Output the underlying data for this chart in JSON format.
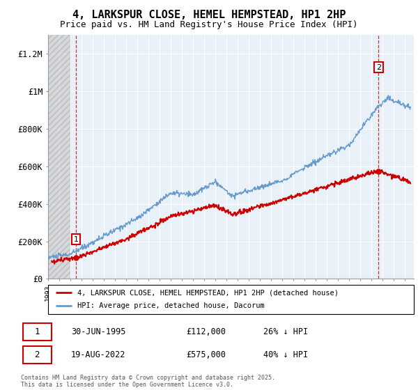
{
  "title": "4, LARKSPUR CLOSE, HEMEL HEMPSTEAD, HP1 2HP",
  "subtitle": "Price paid vs. HM Land Registry's House Price Index (HPI)",
  "ylim": [
    0,
    1300000
  ],
  "yticks": [
    0,
    200000,
    400000,
    600000,
    800000,
    1000000,
    1200000
  ],
  "ytick_labels": [
    "£0",
    "£200K",
    "£400K",
    "£600K",
    "£800K",
    "£1M",
    "£1.2M"
  ],
  "hpi_color": "#6699cc",
  "price_color": "#cc0000",
  "dashed_color": "#cc0000",
  "legend_price_label": "4, LARKSPUR CLOSE, HEMEL HEMPSTEAD, HP1 2HP (detached house)",
  "legend_hpi_label": "HPI: Average price, detached house, Dacorum",
  "table_row1": [
    "1",
    "30-JUN-1995",
    "£112,000",
    "26% ↓ HPI"
  ],
  "table_row2": [
    "2",
    "19-AUG-2022",
    "£575,000",
    "40% ↓ HPI"
  ],
  "footer": "Contains HM Land Registry data © Crown copyright and database right 2025.\nThis data is licensed under the Open Government Licence v3.0.",
  "bg_color": "#e8f0f8",
  "grid_color": "#ffffff",
  "title_fontsize": 11,
  "subtitle_fontsize": 9
}
